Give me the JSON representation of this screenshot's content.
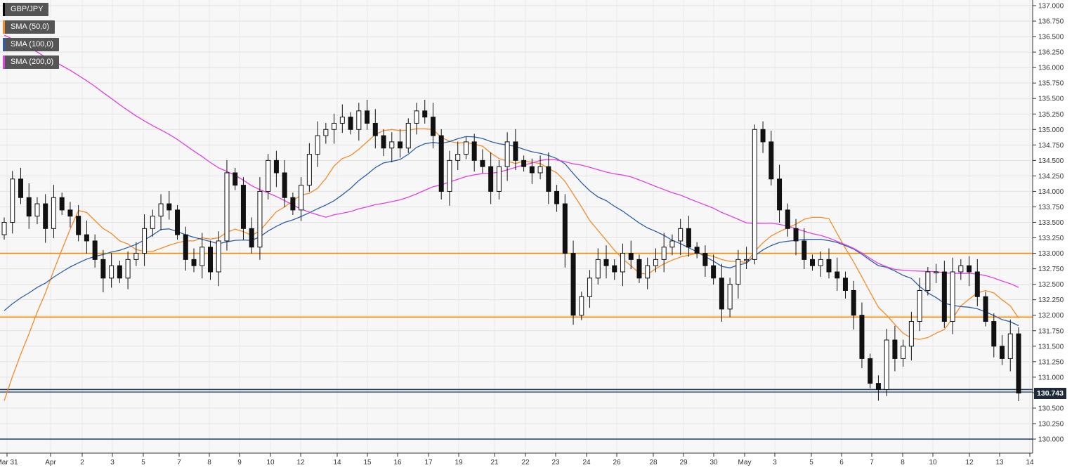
{
  "chart_data": {
    "type": "candlestick",
    "symbol": "GBP/JPY",
    "y_axis": {
      "min": 130.0,
      "max": 137.0,
      "ticks": [
        "130.000",
        "130.250",
        "130.500",
        "130.750",
        "131.000",
        "131.250",
        "131.500",
        "131.750",
        "132.000",
        "132.250",
        "132.500",
        "132.750",
        "133.000",
        "133.250",
        "133.500",
        "133.750",
        "134.000",
        "134.250",
        "134.500",
        "134.750",
        "135.000",
        "135.250",
        "135.500",
        "135.750",
        "136.000",
        "136.250",
        "136.500",
        "136.750",
        "137.000"
      ]
    },
    "x_axis": {
      "labels": [
        "Mar 31",
        "Apr",
        "2",
        "3",
        "5",
        "7",
        "8",
        "9",
        "10",
        "12",
        "14",
        "15",
        "16",
        "17",
        "19",
        "21",
        "22",
        "23",
        "24",
        "26",
        "28",
        "29",
        "30",
        "May",
        "3",
        "5",
        "6",
        "7",
        "8",
        "10",
        "12",
        "13",
        "14"
      ]
    },
    "current_price": "130.743",
    "horizontal_levels": [
      {
        "value": 133.0,
        "color": "#f08c00"
      },
      {
        "value": 131.97,
        "color": "#f08c00"
      },
      {
        "value": 130.8,
        "color": "#1f3b66"
      },
      {
        "value": 130.0,
        "color": "#1f3b66"
      }
    ],
    "legend": [
      {
        "label": "GBP/JPY",
        "color": "#000000"
      },
      {
        "label": "SMA (50,0)",
        "color": "#f28c28"
      },
      {
        "label": "SMA (100,0)",
        "color": "#2e5fa8"
      },
      {
        "label": "SMA (200,0)",
        "color": "#e040e0"
      }
    ],
    "candles_close_path": [
      [
        0,
        133.5
      ],
      [
        1,
        134.2
      ],
      [
        2,
        133.9
      ],
      [
        3,
        133.6
      ],
      [
        4,
        133.8
      ],
      [
        5,
        133.4
      ],
      [
        6,
        133.9
      ],
      [
        7,
        133.7
      ],
      [
        8,
        133.6
      ],
      [
        9,
        133.3
      ],
      [
        10,
        133.2
      ],
      [
        11,
        132.9
      ],
      [
        12,
        132.6
      ],
      [
        13,
        132.8
      ],
      [
        14,
        132.6
      ],
      [
        15,
        132.9
      ],
      [
        16,
        133.0
      ],
      [
        17,
        133.4
      ],
      [
        18,
        133.6
      ],
      [
        19,
        133.8
      ],
      [
        20,
        133.7
      ],
      [
        21,
        133.3
      ],
      [
        22,
        132.9
      ],
      [
        23,
        132.8
      ],
      [
        24,
        133.1
      ],
      [
        25,
        132.7
      ],
      [
        26,
        133.2
      ],
      [
        27,
        134.3
      ],
      [
        28,
        134.1
      ],
      [
        29,
        133.4
      ],
      [
        30,
        133.1
      ],
      [
        31,
        134.0
      ],
      [
        32,
        134.5
      ],
      [
        33,
        134.3
      ],
      [
        34,
        133.9
      ],
      [
        35,
        133.7
      ],
      [
        36,
        134.1
      ],
      [
        37,
        134.6
      ],
      [
        38,
        134.9
      ],
      [
        39,
        135.0
      ],
      [
        40,
        135.1
      ],
      [
        41,
        135.2
      ],
      [
        42,
        135.0
      ],
      [
        43,
        135.3
      ],
      [
        44,
        135.1
      ],
      [
        45,
        134.9
      ],
      [
        46,
        134.7
      ],
      [
        47,
        134.8
      ],
      [
        48,
        134.7
      ],
      [
        49,
        135.1
      ],
      [
        50,
        135.3
      ],
      [
        51,
        135.2
      ],
      [
        52,
        134.9
      ],
      [
        53,
        134.0
      ],
      [
        54,
        134.5
      ],
      [
        55,
        134.6
      ],
      [
        56,
        134.8
      ],
      [
        57,
        134.5
      ],
      [
        58,
        134.4
      ],
      [
        59,
        134.0
      ],
      [
        60,
        134.4
      ],
      [
        61,
        134.8
      ],
      [
        62,
        134.5
      ],
      [
        63,
        134.4
      ],
      [
        64,
        134.3
      ],
      [
        65,
        134.4
      ],
      [
        66,
        134.0
      ],
      [
        67,
        133.8
      ],
      [
        68,
        133.0
      ],
      [
        69,
        132.0
      ],
      [
        70,
        132.3
      ],
      [
        71,
        132.6
      ],
      [
        72,
        132.9
      ],
      [
        73,
        132.8
      ],
      [
        74,
        132.7
      ],
      [
        75,
        133.0
      ],
      [
        76,
        132.9
      ],
      [
        77,
        132.6
      ],
      [
        78,
        132.8
      ],
      [
        79,
        132.9
      ],
      [
        80,
        133.1
      ],
      [
        81,
        133.2
      ],
      [
        82,
        133.4
      ],
      [
        83,
        133.1
      ],
      [
        84,
        133.0
      ],
      [
        85,
        132.8
      ],
      [
        86,
        132.6
      ],
      [
        87,
        132.1
      ],
      [
        88,
        132.5
      ],
      [
        89,
        132.9
      ],
      [
        90,
        132.9
      ],
      [
        91,
        135.0
      ],
      [
        92,
        134.8
      ],
      [
        93,
        134.2
      ],
      [
        94,
        133.7
      ],
      [
        95,
        133.4
      ],
      [
        96,
        133.2
      ],
      [
        97,
        132.9
      ],
      [
        98,
        132.8
      ],
      [
        99,
        132.9
      ],
      [
        100,
        132.7
      ],
      [
        101,
        132.6
      ],
      [
        102,
        132.4
      ],
      [
        103,
        132.0
      ],
      [
        104,
        131.3
      ],
      [
        105,
        130.9
      ],
      [
        106,
        130.8
      ],
      [
        107,
        131.6
      ],
      [
        108,
        131.3
      ],
      [
        109,
        131.5
      ],
      [
        110,
        131.9
      ],
      [
        111,
        132.4
      ],
      [
        112,
        132.7
      ],
      [
        113,
        132.7
      ],
      [
        114,
        131.9
      ],
      [
        115,
        132.7
      ],
      [
        116,
        132.8
      ],
      [
        117,
        132.7
      ],
      [
        118,
        132.3
      ],
      [
        119,
        131.9
      ],
      [
        120,
        131.5
      ],
      [
        121,
        131.3
      ],
      [
        122,
        131.7
      ],
      [
        123,
        130.743
      ]
    ]
  }
}
